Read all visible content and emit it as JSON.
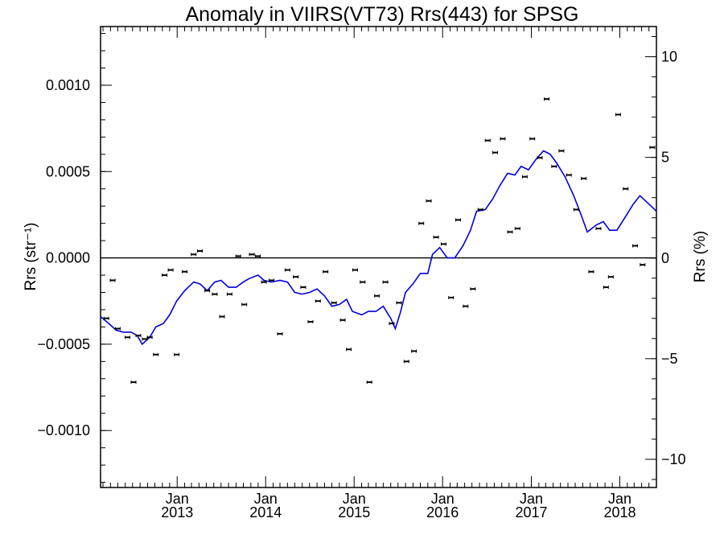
{
  "chart_data": {
    "type": "scatter",
    "title": "Anomaly in VIIRS(VT73) Rrs(443) for SPSG",
    "ylabel": "Rrs (str⁻¹)",
    "y2label": "Rrs (%)",
    "xlim": [
      "2012-02-20",
      "2018-06-01"
    ],
    "ylim": [
      -0.00133,
      0.00134
    ],
    "y2lim": [
      -11.4,
      11.5
    ],
    "x_major_ticks": [
      {
        "date": "2013-01-01",
        "month": "Jan",
        "year": "2013"
      },
      {
        "date": "2014-01-01",
        "month": "Jan",
        "year": "2014"
      },
      {
        "date": "2015-01-01",
        "month": "Jan",
        "year": "2015"
      },
      {
        "date": "2016-01-01",
        "month": "Jan",
        "year": "2016"
      },
      {
        "date": "2017-01-01",
        "month": "Jan",
        "year": "2017"
      },
      {
        "date": "2018-01-01",
        "month": "Jan",
        "year": "2018"
      }
    ],
    "y_ticks": [
      {
        "value": 0.001,
        "label": "0.0010"
      },
      {
        "value": 0.0005,
        "label": "0.0005"
      },
      {
        "value": 0.0,
        "label": "0.0000"
      },
      {
        "value": -0.0005,
        "label": "−0.0005"
      },
      {
        "value": -0.001,
        "label": "−0.0010"
      }
    ],
    "y2_ticks": [
      {
        "value": 10,
        "label": "10"
      },
      {
        "value": 5,
        "label": "5"
      },
      {
        "value": 0,
        "label": "0"
      },
      {
        "value": -5,
        "label": "−5"
      },
      {
        "value": -10,
        "label": "−10"
      }
    ],
    "zero_line": 0.0,
    "series": [
      {
        "kind": "points",
        "color": "#000000",
        "points": [
          [
            "2012-03-15",
            -0.00035
          ],
          [
            "2012-04-10",
            -0.00013
          ],
          [
            "2012-05-01",
            -0.00041
          ],
          [
            "2012-06-10",
            -0.00046
          ],
          [
            "2012-07-05",
            -0.00072
          ],
          [
            "2012-07-25",
            -0.00045
          ],
          [
            "2012-08-20",
            -0.00047
          ],
          [
            "2012-09-10",
            -0.00046
          ],
          [
            "2012-10-05",
            -0.00056
          ],
          [
            "2012-11-10",
            -0.0001
          ],
          [
            "2012-12-05",
            -7e-05
          ],
          [
            "2012-12-30",
            -0.00056
          ],
          [
            "2013-02-01",
            -8e-05
          ],
          [
            "2013-03-10",
            2e-05
          ],
          [
            "2013-04-05",
            4e-05
          ],
          [
            "2013-05-05",
            -0.00019
          ],
          [
            "2013-06-05",
            -0.00021
          ],
          [
            "2013-07-05",
            -0.00034
          ],
          [
            "2013-08-05",
            -0.00021
          ],
          [
            "2013-09-10",
            1e-05
          ],
          [
            "2013-10-05",
            -0.00027
          ],
          [
            "2013-11-05",
            2e-05
          ],
          [
            "2013-11-30",
            1e-05
          ],
          [
            "2013-12-25",
            -0.00014
          ],
          [
            "2014-01-25",
            -0.00013
          ],
          [
            "2014-03-01",
            -0.00044
          ],
          [
            "2014-04-01",
            -7e-05
          ],
          [
            "2014-05-05",
            -0.00011
          ],
          [
            "2014-06-05",
            -0.00017
          ],
          [
            "2014-07-05",
            -0.00037
          ],
          [
            "2014-08-05",
            -0.00025
          ],
          [
            "2014-09-05",
            -8e-05
          ],
          [
            "2014-10-10",
            -0.00026
          ],
          [
            "2014-11-15",
            -0.00036
          ],
          [
            "2014-12-10",
            -0.00053
          ],
          [
            "2015-01-05",
            -7e-05
          ],
          [
            "2015-02-05",
            -0.00014
          ],
          [
            "2015-03-05",
            -0.00072
          ],
          [
            "2015-04-05",
            -0.00022
          ],
          [
            "2015-05-10",
            -0.00014
          ],
          [
            "2015-06-05",
            -0.00038
          ],
          [
            "2015-07-05",
            -0.00026
          ],
          [
            "2015-08-05",
            -0.0006
          ],
          [
            "2015-09-05",
            -0.00054
          ],
          [
            "2015-10-05",
            0.0002
          ],
          [
            "2015-11-05",
            0.00033
          ],
          [
            "2015-12-05",
            0.00012
          ],
          [
            "2016-01-05",
            8e-05
          ],
          [
            "2016-02-05",
            -0.00023
          ],
          [
            "2016-03-05",
            0.00022
          ],
          [
            "2016-04-05",
            -0.00028
          ],
          [
            "2016-05-05",
            -0.00018
          ],
          [
            "2016-06-05",
            0.00028
          ],
          [
            "2016-07-05",
            0.00068
          ],
          [
            "2016-08-05",
            0.00061
          ],
          [
            "2016-09-05",
            0.00069
          ],
          [
            "2016-10-05",
            0.00015
          ],
          [
            "2016-11-05",
            0.00017
          ],
          [
            "2016-12-05",
            0.00047
          ],
          [
            "2017-01-05",
            0.00069
          ],
          [
            "2017-02-05",
            0.00058
          ],
          [
            "2017-03-05",
            0.00092
          ],
          [
            "2017-04-05",
            0.00053
          ],
          [
            "2017-05-05",
            0.00062
          ],
          [
            "2017-06-05",
            0.00048
          ],
          [
            "2017-07-05",
            0.00028
          ],
          [
            "2017-08-05",
            0.00046
          ],
          [
            "2017-09-05",
            -8e-05
          ],
          [
            "2017-10-05",
            0.00017
          ],
          [
            "2017-11-05",
            -0.00017
          ],
          [
            "2017-11-25",
            -0.00011
          ],
          [
            "2017-12-25",
            0.00083
          ],
          [
            "2018-01-25",
            0.0004
          ],
          [
            "2018-03-05",
            7e-05
          ],
          [
            "2018-04-05",
            -4e-05
          ],
          [
            "2018-05-15",
            0.00064
          ]
        ]
      },
      {
        "kind": "line",
        "color": "#0000dd",
        "points": [
          [
            "2012-02-20",
            -0.00034
          ],
          [
            "2012-03-25",
            -0.00038
          ],
          [
            "2012-04-25",
            -0.00042
          ],
          [
            "2012-05-25",
            -0.00043
          ],
          [
            "2012-06-25",
            -0.00043
          ],
          [
            "2012-07-20",
            -0.00045
          ],
          [
            "2012-08-10",
            -0.0005
          ],
          [
            "2012-09-10",
            -0.00046
          ],
          [
            "2012-10-05",
            -0.0004
          ],
          [
            "2012-11-05",
            -0.00038
          ],
          [
            "2012-12-01",
            -0.00033
          ],
          [
            "2012-12-30",
            -0.00025
          ],
          [
            "2013-02-01",
            -0.00019
          ],
          [
            "2013-03-10",
            -0.00014
          ],
          [
            "2013-04-05",
            -0.00015
          ],
          [
            "2013-05-05",
            -0.00019
          ],
          [
            "2013-06-05",
            -0.00014
          ],
          [
            "2013-07-01",
            -0.00013
          ],
          [
            "2013-08-01",
            -0.00017
          ],
          [
            "2013-09-01",
            -0.00017
          ],
          [
            "2013-10-01",
            -0.00014
          ],
          [
            "2013-10-25",
            -0.00012
          ],
          [
            "2013-12-01",
            -0.0001
          ],
          [
            "2013-12-25",
            -0.00013
          ],
          [
            "2014-01-25",
            -0.00014
          ],
          [
            "2014-03-01",
            -0.00013
          ],
          [
            "2014-04-01",
            -0.00014
          ],
          [
            "2014-05-01",
            -0.0002
          ],
          [
            "2014-06-01",
            -0.00021
          ],
          [
            "2014-07-01",
            -0.0002
          ],
          [
            "2014-08-01",
            -0.00018
          ],
          [
            "2014-09-01",
            -0.00022
          ],
          [
            "2014-10-01",
            -0.00028
          ],
          [
            "2014-11-01",
            -0.00027
          ],
          [
            "2014-12-01",
            -0.00024
          ],
          [
            "2014-12-25",
            -0.00031
          ],
          [
            "2015-02-01",
            -0.00033
          ],
          [
            "2015-03-01",
            -0.00031
          ],
          [
            "2015-04-01",
            -0.00031
          ],
          [
            "2015-05-01",
            -0.00028
          ],
          [
            "2015-06-01",
            -0.00035
          ],
          [
            "2015-06-20",
            -0.00041
          ],
          [
            "2015-07-10",
            -0.00032
          ],
          [
            "2015-08-01",
            -0.0002
          ],
          [
            "2015-09-01",
            -0.00015
          ],
          [
            "2015-10-01",
            -9e-05
          ],
          [
            "2015-11-01",
            -9e-05
          ],
          [
            "2015-11-20",
            2e-05
          ],
          [
            "2015-12-20",
            6e-05
          ],
          [
            "2016-01-20",
            0.0
          ],
          [
            "2016-02-20",
            0.0
          ],
          [
            "2016-03-25",
            7e-05
          ],
          [
            "2016-04-25",
            0.00016
          ],
          [
            "2016-05-20",
            0.00027
          ],
          [
            "2016-06-25",
            0.00028
          ],
          [
            "2016-07-25",
            0.00034
          ],
          [
            "2016-08-25",
            0.00042
          ],
          [
            "2016-09-25",
            0.00049
          ],
          [
            "2016-10-25",
            0.00048
          ],
          [
            "2016-11-20",
            0.00053
          ],
          [
            "2016-12-20",
            0.00051
          ],
          [
            "2017-01-20",
            0.00057
          ],
          [
            "2017-02-20",
            0.00062
          ],
          [
            "2017-03-20",
            0.0006
          ],
          [
            "2017-04-15",
            0.00055
          ],
          [
            "2017-05-20",
            0.00047
          ],
          [
            "2017-06-25",
            0.00036
          ],
          [
            "2017-07-25",
            0.00025
          ],
          [
            "2017-08-20",
            0.00015
          ],
          [
            "2017-09-25",
            0.00019
          ],
          [
            "2017-10-25",
            0.00021
          ],
          [
            "2017-11-20",
            0.00016
          ],
          [
            "2017-12-20",
            0.00016
          ],
          [
            "2018-01-25",
            0.00024
          ],
          [
            "2018-02-25",
            0.00031
          ],
          [
            "2018-03-25",
            0.00036
          ],
          [
            "2018-04-25",
            0.00032
          ],
          [
            "2018-06-01",
            0.00027
          ]
        ]
      }
    ]
  }
}
